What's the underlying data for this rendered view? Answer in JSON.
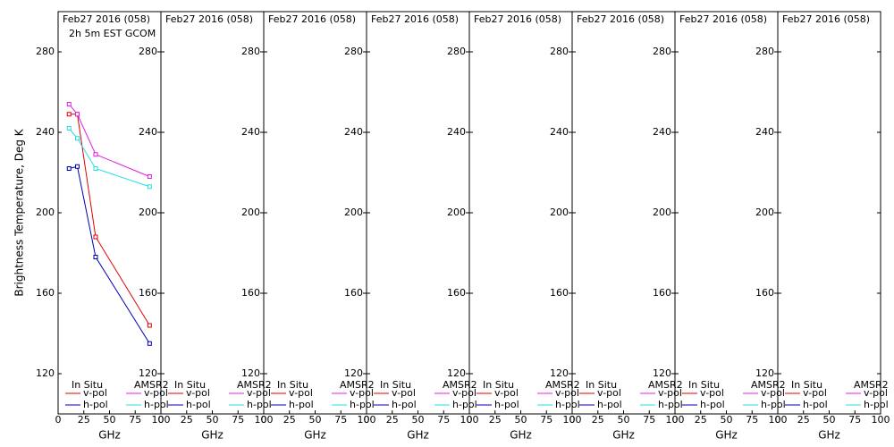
{
  "chart_data": [
    {
      "type": "line",
      "title": "Feb27 2016 (058)",
      "subtitle": "2h 5m EST GCOM",
      "ylabel": "Brightness Temperature, Deg K",
      "xlabel": "GHz",
      "x": [
        10.65,
        18.7,
        36.5,
        89
      ],
      "xlim": [
        0,
        100
      ],
      "xticks": [
        0,
        25,
        50,
        75,
        100
      ],
      "ylim": [
        100,
        300
      ],
      "yticks": [
        120,
        160,
        200,
        240,
        280
      ],
      "legend_titles": [
        "In Situ",
        "AMSR2"
      ],
      "series": [
        {
          "name": "v-pol",
          "color": "#e00000",
          "values": [
            249,
            249,
            188,
            144
          ]
        },
        {
          "name": "h-pol",
          "color": "#0000b0",
          "values": [
            222,
            223,
            178,
            135
          ]
        },
        {
          "name": "v-pol",
          "color": "#e020e0",
          "values": [
            254,
            249,
            229,
            218
          ]
        },
        {
          "name": "h-pol",
          "color": "#20e0e0",
          "values": [
            242,
            237,
            222,
            213
          ]
        }
      ]
    },
    {
      "type": "line",
      "title": "Feb27 2016 (058)",
      "xlabel": "GHz",
      "x": [],
      "xlim": [
        0,
        100
      ],
      "xticks": [
        0,
        25,
        50,
        75,
        100
      ],
      "ylim": [
        100,
        300
      ],
      "yticks": [
        120,
        160,
        200,
        240,
        280
      ],
      "legend_titles": [
        "In Situ",
        "AMSR2"
      ],
      "series": [
        {
          "name": "v-pol",
          "color": "#e00000",
          "values": []
        },
        {
          "name": "h-pol",
          "color": "#0000b0",
          "values": []
        },
        {
          "name": "v-pol",
          "color": "#e020e0",
          "values": []
        },
        {
          "name": "h-pol",
          "color": "#20e0e0",
          "values": []
        }
      ]
    },
    {
      "type": "line",
      "title": "Feb27 2016 (058)",
      "xlabel": "GHz",
      "x": [],
      "xlim": [
        0,
        100
      ],
      "xticks": [
        0,
        25,
        50,
        75,
        100
      ],
      "ylim": [
        100,
        300
      ],
      "yticks": [
        120,
        160,
        200,
        240,
        280
      ],
      "legend_titles": [
        "In Situ",
        "AMSR2"
      ],
      "series": [
        {
          "name": "v-pol",
          "color": "#e00000",
          "values": []
        },
        {
          "name": "h-pol",
          "color": "#0000b0",
          "values": []
        },
        {
          "name": "v-pol",
          "color": "#e020e0",
          "values": []
        },
        {
          "name": "h-pol",
          "color": "#20e0e0",
          "values": []
        }
      ]
    },
    {
      "type": "line",
      "title": "Feb27 2016 (058)",
      "xlabel": "GHz",
      "x": [],
      "xlim": [
        0,
        100
      ],
      "xticks": [
        0,
        25,
        50,
        75,
        100
      ],
      "ylim": [
        100,
        300
      ],
      "yticks": [
        120,
        160,
        200,
        240,
        280
      ],
      "legend_titles": [
        "In Situ",
        "AMSR2"
      ],
      "series": [
        {
          "name": "v-pol",
          "color": "#e00000",
          "values": []
        },
        {
          "name": "h-pol",
          "color": "#0000b0",
          "values": []
        },
        {
          "name": "v-pol",
          "color": "#e020e0",
          "values": []
        },
        {
          "name": "h-pol",
          "color": "#20e0e0",
          "values": []
        }
      ]
    },
    {
      "type": "line",
      "title": "Feb27 2016 (058)",
      "xlabel": "GHz",
      "x": [],
      "xlim": [
        0,
        100
      ],
      "xticks": [
        0,
        25,
        50,
        75,
        100
      ],
      "ylim": [
        100,
        300
      ],
      "yticks": [
        120,
        160,
        200,
        240,
        280
      ],
      "legend_titles": [
        "In Situ",
        "AMSR2"
      ],
      "series": [
        {
          "name": "v-pol",
          "color": "#e00000",
          "values": []
        },
        {
          "name": "h-pol",
          "color": "#0000b0",
          "values": []
        },
        {
          "name": "v-pol",
          "color": "#e020e0",
          "values": []
        },
        {
          "name": "h-pol",
          "color": "#20e0e0",
          "values": []
        }
      ]
    },
    {
      "type": "line",
      "title": "Feb27 2016 (058)",
      "xlabel": "GHz",
      "x": [],
      "xlim": [
        0,
        100
      ],
      "xticks": [
        0,
        25,
        50,
        75,
        100
      ],
      "ylim": [
        100,
        300
      ],
      "yticks": [
        120,
        160,
        200,
        240,
        280
      ],
      "legend_titles": [
        "In Situ",
        "AMSR2"
      ],
      "series": [
        {
          "name": "v-pol",
          "color": "#e00000",
          "values": []
        },
        {
          "name": "h-pol",
          "color": "#0000b0",
          "values": []
        },
        {
          "name": "v-pol",
          "color": "#e020e0",
          "values": []
        },
        {
          "name": "h-pol",
          "color": "#20e0e0",
          "values": []
        }
      ]
    },
    {
      "type": "line",
      "title": "Feb27 2016 (058)",
      "xlabel": "GHz",
      "x": [],
      "xlim": [
        0,
        100
      ],
      "xticks": [
        0,
        25,
        50,
        75,
        100
      ],
      "ylim": [
        100,
        300
      ],
      "yticks": [
        120,
        160,
        200,
        240,
        280
      ],
      "legend_titles": [
        "In Situ",
        "AMSR2"
      ],
      "series": [
        {
          "name": "v-pol",
          "color": "#e00000",
          "values": []
        },
        {
          "name": "h-pol",
          "color": "#0000b0",
          "values": []
        },
        {
          "name": "v-pol",
          "color": "#e020e0",
          "values": []
        },
        {
          "name": "h-pol",
          "color": "#20e0e0",
          "values": []
        }
      ]
    },
    {
      "type": "line",
      "title": "Feb27 2016 (058)",
      "xlabel": "GHz",
      "x": [],
      "xlim": [
        0,
        100
      ],
      "xticks": [
        0,
        25,
        50,
        75,
        100
      ],
      "ylim": [
        100,
        300
      ],
      "yticks": [
        120,
        160,
        200,
        240,
        280
      ],
      "legend_titles": [
        "In Situ",
        "AMSR2"
      ],
      "series": [
        {
          "name": "v-pol",
          "color": "#e00000",
          "values": []
        },
        {
          "name": "h-pol",
          "color": "#0000b0",
          "values": []
        },
        {
          "name": "v-pol",
          "color": "#e020e0",
          "values": []
        },
        {
          "name": "h-pol",
          "color": "#20e0e0",
          "values": []
        }
      ]
    }
  ]
}
